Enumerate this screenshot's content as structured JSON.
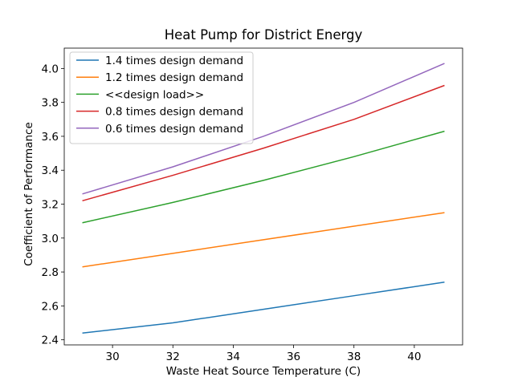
{
  "chart_data": {
    "type": "line",
    "title": "Heat Pump for District Energy",
    "xlabel": "Waste Heat Source Temperature (C)",
    "ylabel": "Coefficient of Performance",
    "x": [
      29,
      32,
      35,
      38,
      41
    ],
    "xlim": [
      28.4,
      41.6
    ],
    "ylim": [
      2.37,
      4.12
    ],
    "xticks": [
      30,
      32,
      34,
      36,
      38,
      40
    ],
    "yticks": [
      2.4,
      2.6,
      2.8,
      3.0,
      3.2,
      3.4,
      3.6,
      3.8,
      4.0
    ],
    "xtick_labels": [
      "30",
      "32",
      "34",
      "36",
      "38",
      "40"
    ],
    "ytick_labels": [
      "2.4",
      "2.6",
      "2.8",
      "3.0",
      "3.2",
      "3.4",
      "3.6",
      "3.8",
      "4.0"
    ],
    "grid": false,
    "legend_position": "top-left",
    "series": [
      {
        "name": "1.4 times design demand",
        "color": "#1f77b4",
        "values": [
          2.44,
          2.5,
          2.58,
          2.66,
          2.74
        ]
      },
      {
        "name": "1.2 times design demand",
        "color": "#ff7f0e",
        "values": [
          2.83,
          2.91,
          2.99,
          3.07,
          3.15
        ]
      },
      {
        "name": "<<design load>>",
        "color": "#2ca02c",
        "values": [
          3.09,
          3.21,
          3.34,
          3.48,
          3.63
        ]
      },
      {
        "name": "0.8 times design demand",
        "color": "#d62728",
        "values": [
          3.22,
          3.37,
          3.53,
          3.7,
          3.9
        ]
      },
      {
        "name": "0.6 times design demand",
        "color": "#9467bd",
        "values": [
          3.26,
          3.42,
          3.6,
          3.8,
          4.03
        ]
      }
    ]
  }
}
